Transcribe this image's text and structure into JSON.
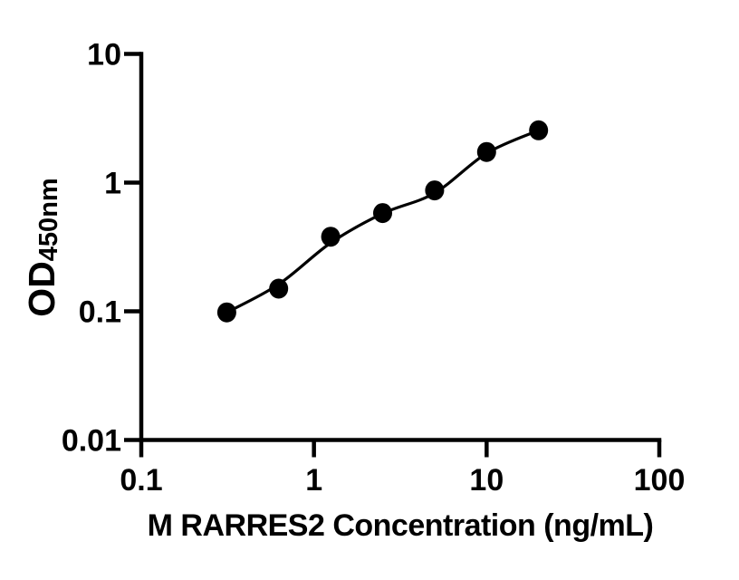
{
  "figure": {
    "background_color": "#ffffff",
    "foreground_color": "#000000"
  },
  "chart_data": {
    "type": "scatter",
    "title": "",
    "xlabel": "M RARRES2 Concentration (ng/mL)",
    "ylabel_main": "OD",
    "ylabel_sub": "450nm",
    "x_scale": "log",
    "y_scale": "log",
    "xlim": [
      0.1,
      100
    ],
    "ylim": [
      0.01,
      10
    ],
    "x_tick_values": [
      0.1,
      1,
      10,
      100
    ],
    "x_tick_labels": [
      "0.1",
      "1",
      "10",
      "100"
    ],
    "y_tick_values": [
      10,
      1,
      0.1,
      0.01
    ],
    "y_tick_labels": [
      "10",
      "1",
      "0.1",
      "0.01"
    ],
    "grid": false,
    "legend_position": "none",
    "series": [
      {
        "name": "standard-points",
        "type": "scatter",
        "marker": "filled-circle",
        "color": "#000000",
        "x": [
          0.3125,
          0.625,
          1.25,
          2.5,
          5,
          10,
          20
        ],
        "y": [
          0.098,
          0.15,
          0.38,
          0.58,
          0.87,
          1.73,
          2.55
        ]
      },
      {
        "name": "fit-line",
        "type": "line",
        "color": "#000000",
        "x": [
          0.3125,
          0.625,
          1.25,
          2.5,
          5,
          10,
          20
        ],
        "y": [
          0.098,
          0.162,
          0.34,
          0.575,
          0.83,
          1.69,
          2.55
        ]
      }
    ]
  }
}
